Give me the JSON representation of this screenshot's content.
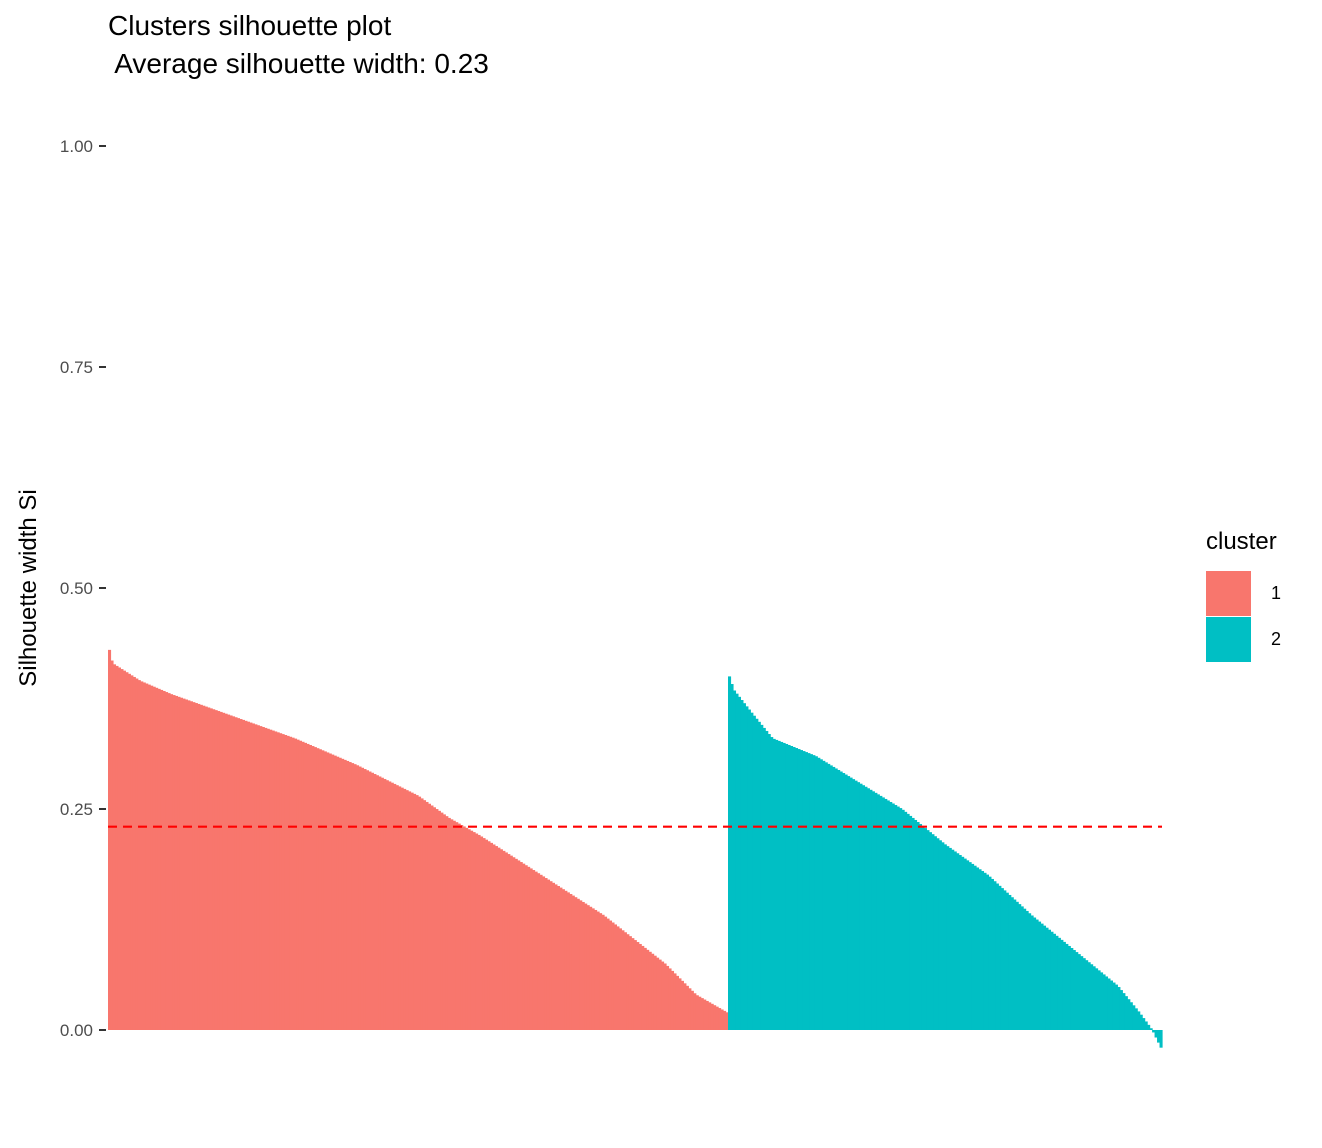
{
  "chart_data": {
    "type": "bar",
    "title": "Clusters silhouette plot",
    "subtitle": " Average silhouette width: 0.23",
    "ylabel": "Silhouette width Si",
    "xlabel": "",
    "ylim": [
      0,
      1
    ],
    "yticks": [
      "0.00",
      "0.25",
      "0.50",
      "0.75",
      "1.00"
    ],
    "average_silhouette_width": 0.23,
    "reference_line": {
      "value": 0.23,
      "style": "dashed",
      "color": "#ff0000"
    },
    "grid": false,
    "legend": {
      "title": "cluster",
      "placement": "right",
      "entries": [
        {
          "label": "1",
          "color": "#F8766D"
        },
        {
          "label": "2",
          "color": "#00BFC4"
        }
      ]
    },
    "series": [
      {
        "name": "1",
        "color": "#F8766D",
        "count": 250,
        "profile": {
          "rank_fraction": [
            0,
            0.005,
            0.05,
            0.1,
            0.2,
            0.3,
            0.4,
            0.5,
            0.55,
            0.6,
            0.7,
            0.8,
            0.9,
            0.95,
            1.0
          ],
          "values": [
            0.43,
            0.415,
            0.395,
            0.38,
            0.355,
            0.33,
            0.3,
            0.265,
            0.24,
            0.22,
            0.175,
            0.13,
            0.075,
            0.04,
            0.02
          ]
        }
      },
      {
        "name": "2",
        "color": "#00BFC4",
        "count": 175,
        "profile": {
          "rank_fraction": [
            0,
            0.01,
            0.05,
            0.1,
            0.2,
            0.3,
            0.4,
            0.5,
            0.6,
            0.7,
            0.8,
            0.9,
            0.95,
            0.98,
            1.0
          ],
          "values": [
            0.4,
            0.385,
            0.36,
            0.33,
            0.31,
            0.28,
            0.25,
            0.21,
            0.175,
            0.13,
            0.09,
            0.05,
            0.02,
            0.0,
            -0.02
          ]
        }
      }
    ]
  }
}
